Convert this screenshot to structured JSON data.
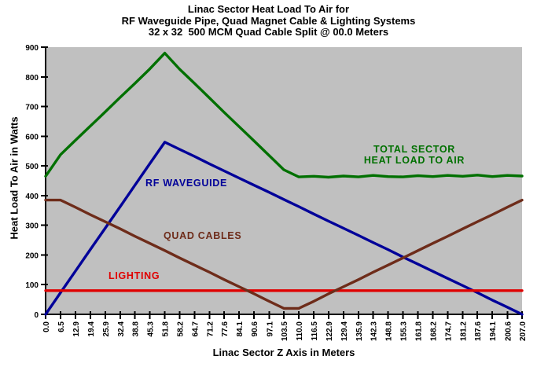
{
  "title": {
    "line1": "Linac Sector Heat Load To Air for",
    "line2": "RF Waveguide Pipe, Quad Magnet Cable & Lighting Systems",
    "line3": "32 x 32  500 MCM Quad Cable Split @ 00.0 Meters"
  },
  "annotations": {
    "total": "TOTAL SECTOR\nHEAT LOAD TO AIR",
    "rf": "RF WAVEGUIDE",
    "quad": "QUAD CABLES",
    "lighting": "LIGHTING"
  },
  "chart_data": {
    "type": "line",
    "title": "Linac Sector Heat Load To Air for RF Waveguide Pipe, Quad Magnet Cable & Lighting Systems, 32 x 32 500 MCM Quad Cable Split @ 00.0 Meters",
    "xlabel": "Linac Sector Z Axis in Meters",
    "ylabel": "Heat Load To Air in Watts",
    "x_range": [
      0,
      207
    ],
    "y_range": [
      0,
      900
    ],
    "grid": false,
    "legend_position": "in-plot text annotations",
    "plot_bg": "#C0C0C0",
    "axis_color": "#000000",
    "y_ticks": [
      0,
      100,
      200,
      300,
      400,
      500,
      600,
      700,
      800,
      900
    ],
    "x": [
      0,
      6.5,
      12.9,
      19.4,
      25.9,
      32.4,
      38.8,
      45.3,
      51.8,
      58.2,
      64.7,
      71.2,
      77.6,
      84.1,
      90.6,
      97.1,
      103.5,
      110,
      116.5,
      122.9,
      129.4,
      135.9,
      142.3,
      148.8,
      155.3,
      161.8,
      168.2,
      174.7,
      181.2,
      187.6,
      194.1,
      200.6,
      207
    ],
    "x_tick_labels": [
      "0.0",
      "6.5",
      "12.9",
      "19.4",
      "25.9",
      "32.4",
      "38.8",
      "45.3",
      "51.8",
      "58.2",
      "64.7",
      "71.2",
      "77.6",
      "84.1",
      "90.6",
      "97.1",
      "103.5",
      "110.0",
      "116.5",
      "122.9",
      "129.4",
      "135.9",
      "142.3",
      "148.8",
      "155.3",
      "161.8",
      "168.2",
      "174.7",
      "181.2",
      "187.6",
      "194.1",
      "200.6",
      "207.0"
    ],
    "series": [
      {
        "id": "total",
        "name": "TOTAL SECTOR HEAT LOAD TO AIR",
        "color": "#007000",
        "values": [
          465,
          538,
          586,
          634,
          682,
          731,
          778,
          827,
          880,
          826,
          778,
          729,
          680,
          632,
          584,
          535,
          487,
          463,
          465,
          462,
          466,
          463,
          468,
          464,
          463,
          467,
          464,
          468,
          465,
          469,
          464,
          468,
          466
        ]
      },
      {
        "id": "rf_waveguide",
        "name": "RF WAVEGUIDE",
        "color": "#000099",
        "values": [
          0,
          73,
          145,
          218,
          290,
          363,
          435,
          508,
          580,
          556,
          532,
          507,
          483,
          459,
          435,
          411,
          387,
          363,
          338,
          314,
          290,
          266,
          242,
          218,
          193,
          169,
          145,
          121,
          97,
          73,
          48,
          24,
          0
        ]
      },
      {
        "id": "lighting",
        "name": "LIGHTING",
        "color": "#E00000",
        "values": [
          80,
          80,
          80,
          80,
          80,
          80,
          80,
          80,
          80,
          80,
          80,
          80,
          80,
          80,
          80,
          80,
          80,
          80,
          80,
          80,
          80,
          80,
          80,
          80,
          80,
          80,
          80,
          80,
          80,
          80,
          80,
          80,
          80
        ]
      },
      {
        "id": "quad_cables",
        "name": "QUAD CABLES",
        "color": "#6E2C1A",
        "values": [
          385,
          385,
          361,
          336,
          312,
          288,
          263,
          239,
          215,
          190,
          166,
          142,
          117,
          93,
          69,
          44,
          20,
          20,
          44,
          69,
          93,
          117,
          142,
          166,
          190,
          215,
          239,
          263,
          288,
          312,
          336,
          361,
          385
        ]
      }
    ]
  }
}
